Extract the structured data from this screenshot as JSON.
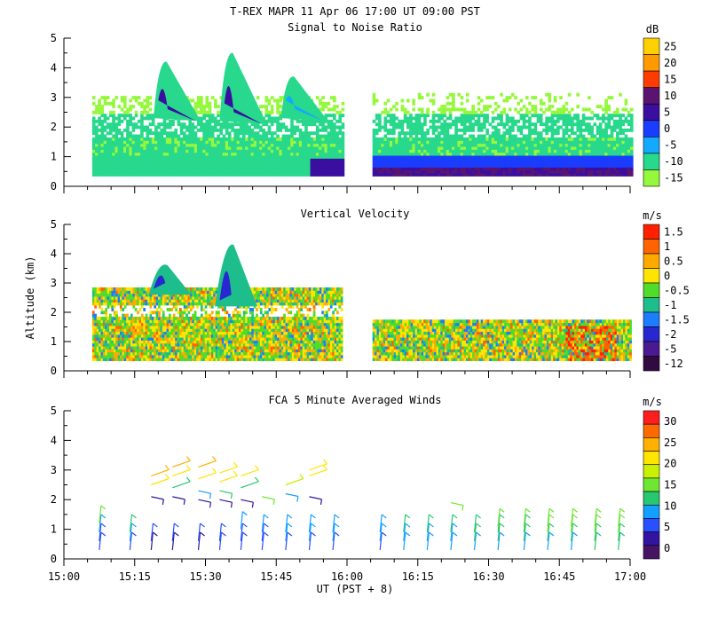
{
  "title": "T-REX  MAPR 11 Apr 06  17:00 UT  09:00  PST",
  "colors": {
    "text": "#000000",
    "background": "#ffffff",
    "missing": "#ffffff"
  },
  "chart_data": [
    {
      "type": "heatmap",
      "title": "Signal to Noise Ratio",
      "ylabel": "",
      "xlabel": "",
      "xlim": [
        0,
        120
      ],
      "ylim": [
        0,
        5
      ],
      "yticks": [
        "0",
        "1",
        "2",
        "3",
        "4",
        "5"
      ],
      "colorbar": {
        "unit": "dB",
        "labels": [
          "25",
          "20",
          "15",
          "10",
          "5",
          "0",
          "-5",
          "-10",
          "-15"
        ],
        "colors": [
          "#ffd000",
          "#ff9a00",
          "#ff3c00",
          "#5a1470",
          "#3a0fa0",
          "#1a3cff",
          "#14a8ff",
          "#28d88c",
          "#96f83c"
        ]
      },
      "data_gaps_minutes": [
        [
          0,
          6
        ],
        [
          59,
          65
        ]
      ],
      "features": [
        {
          "name": "sky",
          "value": -15
        },
        {
          "name": "boundary layer",
          "alt_km": [
            0.3,
            1.0
          ],
          "value": -10
        },
        {
          "name": "low strong echo 15:52-16:00",
          "minutes": [
            52,
            60
          ],
          "alt_km": [
            0.3,
            0.9
          ],
          "value": 3
        },
        {
          "name": "low strong echo 16:05-17:00",
          "minutes": [
            65,
            120
          ],
          "alt_km": [
            0.3,
            1.0
          ],
          "value": 4
        },
        {
          "name": "layer",
          "alt_km": [
            1.7,
            2.3
          ],
          "value": -7
        },
        {
          "name": "plume 15:21",
          "minute": 21,
          "alt_km": [
            2.3,
            4.3
          ],
          "value": 5
        },
        {
          "name": "plume 15:35",
          "minute": 35,
          "alt_km": [
            2.2,
            4.6
          ],
          "value": 5
        },
        {
          "name": "plume 15:48",
          "minute": 48,
          "alt_km": [
            2.3,
            3.8
          ],
          "value": -8
        }
      ]
    },
    {
      "type": "heatmap",
      "title": "Vertical Velocity",
      "ylabel": "Altitude (km)",
      "xlabel": "",
      "xlim": [
        0,
        120
      ],
      "ylim": [
        0,
        5
      ],
      "yticks": [
        "0",
        "1",
        "2",
        "3",
        "4",
        "5"
      ],
      "colorbar": {
        "unit": "m/s",
        "labels": [
          "1.5",
          "1",
          "0.5",
          "0",
          "-0.5",
          "-1",
          "-1.5",
          "-2",
          "-5",
          "-12"
        ],
        "colors": [
          "#ff2000",
          "#ff6400",
          "#ffaa00",
          "#ffe400",
          "#50dc28",
          "#1ebe8c",
          "#1e7cff",
          "#2828d0",
          "#4a1a90",
          "#300a40"
        ]
      },
      "data_gaps_minutes": [
        [
          0,
          6
        ],
        [
          59,
          65
        ]
      ],
      "features": [
        {
          "name": "background mixed",
          "alt_km": [
            0.3,
            2.8
          ],
          "value": -0.3
        },
        {
          "name": "updraft 15:21",
          "minute": 21,
          "alt_km": [
            2.6,
            3.8
          ],
          "value": -2
        },
        {
          "name": "updraft 15:35",
          "minute": 35,
          "alt_km": [
            2.2,
            4.5
          ],
          "value": -2
        },
        {
          "name": "strong downdraft near 16:45",
          "minutes": [
            106,
            117
          ],
          "alt_km": [
            0.5,
            1.5
          ],
          "value": 1.5
        }
      ]
    },
    {
      "type": "scatter",
      "title": "FCA 5 Minute Averaged Winds",
      "ylabel": "",
      "xlabel": "UT  (PST + 8)",
      "xlim": [
        0,
        120
      ],
      "ylim": [
        0,
        5
      ],
      "xticks": [
        "15:00",
        "15:15",
        "15:30",
        "15:45",
        "16:00",
        "16:15",
        "16:30",
        "16:45",
        "17:00"
      ],
      "yticks": [
        "0",
        "1",
        "2",
        "3",
        "4",
        "5"
      ],
      "colorbar": {
        "unit": "m/s",
        "labels": [
          "30",
          "25",
          "20",
          "15",
          "10",
          "5",
          "0"
        ],
        "colors": [
          "#ff1e1e",
          "#ff6a00",
          "#ffb000",
          "#ffe400",
          "#c8f000",
          "#6ee632",
          "#28c870",
          "#14a0ff",
          "#2850ff",
          "#3214a0",
          "#461464"
        ]
      },
      "barb_groups": [
        {
          "minute": 7.5,
          "heights": [
            0.3,
            0.6,
            0.9,
            1.2
          ],
          "speed": [
            5,
            6,
            10,
            14
          ]
        },
        {
          "minute": 14,
          "heights": [
            0.3,
            0.6,
            0.9
          ],
          "speed": [
            6,
            8,
            11
          ]
        },
        {
          "minute": 18.5,
          "heights": [
            0.3,
            0.6,
            2.1,
            2.5,
            2.8
          ],
          "speed": [
            4,
            6,
            3,
            22,
            23
          ]
        },
        {
          "minute": 23,
          "heights": [
            0.3,
            0.6,
            2.1,
            2.4,
            2.8,
            3.1
          ],
          "speed": [
            4,
            5,
            3,
            13,
            22,
            23
          ]
        },
        {
          "minute": 28.5,
          "heights": [
            0.3,
            0.6,
            2.0,
            2.3,
            2.7,
            3.1
          ],
          "speed": [
            4,
            5,
            3,
            10,
            22,
            24
          ]
        },
        {
          "minute": 33,
          "heights": [
            0.3,
            0.6,
            2.0,
            2.3,
            2.6,
            2.9
          ],
          "speed": [
            5,
            6,
            3,
            12,
            21,
            22
          ]
        },
        {
          "minute": 37.5,
          "heights": [
            0.3,
            0.6,
            1.0,
            2.0,
            2.4,
            2.8
          ],
          "speed": [
            6,
            7,
            8,
            3,
            12,
            21
          ]
        },
        {
          "minute": 42,
          "heights": [
            0.3,
            0.6,
            0.9,
            2.1
          ],
          "speed": [
            6,
            7,
            8,
            16
          ]
        },
        {
          "minute": 47,
          "heights": [
            0.3,
            0.6,
            0.9,
            2.2,
            2.5
          ],
          "speed": [
            7,
            8,
            9,
            10,
            19
          ]
        },
        {
          "minute": 52,
          "heights": [
            0.3,
            0.6,
            0.9,
            2.1,
            2.8,
            3.0
          ],
          "speed": [
            7,
            8,
            9,
            3,
            21,
            22
          ]
        },
        {
          "minute": 57,
          "heights": [
            0.3,
            0.6,
            0.9
          ],
          "speed": [
            6,
            8,
            8
          ]
        },
        {
          "minute": 67,
          "heights": [
            0.3,
            0.6,
            0.9
          ],
          "speed": [
            7,
            8,
            9
          ]
        },
        {
          "minute": 72,
          "heights": [
            0.3,
            0.6,
            0.9
          ],
          "speed": [
            8,
            9,
            11
          ]
        },
        {
          "minute": 77,
          "heights": [
            0.3,
            0.6,
            0.9
          ],
          "speed": [
            8,
            10,
            12
          ]
        },
        {
          "minute": 82,
          "heights": [
            0.3,
            0.6,
            0.9,
            1.9
          ],
          "speed": [
            9,
            10,
            12,
            16
          ]
        },
        {
          "minute": 87,
          "heights": [
            0.3,
            0.6,
            0.9
          ],
          "speed": [
            9,
            11,
            13
          ]
        },
        {
          "minute": 92,
          "heights": [
            0.3,
            0.6,
            0.9,
            1.1
          ],
          "speed": [
            9,
            11,
            13,
            14
          ]
        },
        {
          "minute": 97.5,
          "heights": [
            0.3,
            0.6,
            0.9,
            1.1
          ],
          "speed": [
            10,
            12,
            13,
            15
          ]
        },
        {
          "minute": 102.5,
          "heights": [
            0.3,
            0.6,
            0.9,
            1.1
          ],
          "speed": [
            10,
            12,
            14,
            15
          ]
        },
        {
          "minute": 107.5,
          "heights": [
            0.3,
            0.6,
            0.9,
            1.1
          ],
          "speed": [
            10,
            12,
            14,
            15
          ]
        },
        {
          "minute": 112.5,
          "heights": [
            0.3,
            0.6,
            0.9,
            1.1
          ],
          "speed": [
            11,
            13,
            14,
            15
          ]
        },
        {
          "minute": 117.5,
          "heights": [
            0.3,
            0.6,
            0.9,
            1.1
          ],
          "speed": [
            11,
            13,
            14,
            15
          ]
        }
      ]
    }
  ]
}
